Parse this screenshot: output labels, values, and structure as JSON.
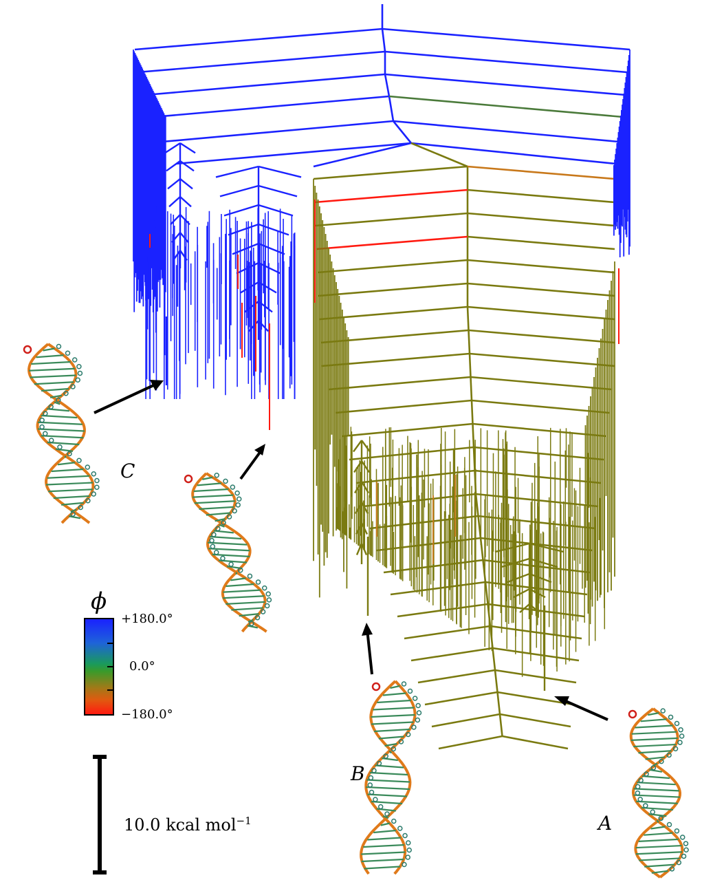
{
  "labels": {
    "A": "A",
    "B": "B",
    "C": "C"
  },
  "colorbar": {
    "symbol": "ϕ",
    "ticks": [
      "+180.0°",
      "0.0°",
      "−180.0°"
    ],
    "colors": [
      "#1a22ff",
      "#1e63d9",
      "#1a9a5c",
      "#3a9a2a",
      "#a07a18",
      "#e05a10",
      "#ff1a10"
    ]
  },
  "scale_bar": {
    "label": "10.0 kcal mol",
    "superscript": "−1"
  },
  "colors": {
    "blue_branch": "#1a22ff",
    "olive_branch": "#7a7a10",
    "red_branch": "#ff1a10",
    "orange_branch": "#c8781a",
    "arrow": "#000000",
    "rna_backbone": "#e07a1a",
    "rna_base": "#3a8a5a"
  },
  "icons": [
    "rna-structure-a-icon",
    "rna-structure-b-icon",
    "rna-structure-c-icon",
    "rna-structure-c2-icon"
  ]
}
